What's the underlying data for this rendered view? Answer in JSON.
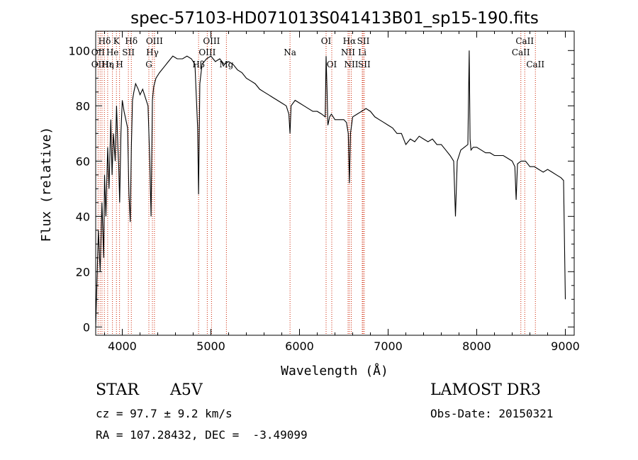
{
  "chart_data": {
    "type": "line",
    "title": "spec-57103-HD071013S041413B01_sp15-190.fits",
    "xlabel": "Wavelength (Å)",
    "ylabel": "Flux (relative)",
    "xlim": [
      3700,
      9100
    ],
    "ylim": [
      -3,
      107
    ],
    "x_ticks": [
      4000,
      5000,
      6000,
      7000,
      8000,
      9000
    ],
    "y_ticks": [
      0,
      20,
      40,
      60,
      80,
      100
    ],
    "grid": false,
    "series": [
      {
        "name": "spectrum",
        "x": [
          3700,
          3730,
          3750,
          3770,
          3790,
          3800,
          3815,
          3835,
          3850,
          3870,
          3885,
          3900,
          3920,
          3935,
          3950,
          3960,
          3970,
          3985,
          4000,
          4020,
          4040,
          4060,
          4075,
          4090,
          4102,
          4115,
          4130,
          4150,
          4180,
          4200,
          4230,
          4260,
          4290,
          4310,
          4325,
          4340,
          4355,
          4380,
          4420,
          4470,
          4520,
          4570,
          4620,
          4680,
          4730,
          4780,
          4820,
          4850,
          4861,
          4875,
          4900,
          4950,
          5000,
          5050,
          5100,
          5150,
          5200,
          5250,
          5300,
          5350,
          5400,
          5450,
          5500,
          5550,
          5600,
          5650,
          5700,
          5750,
          5800,
          5850,
          5880,
          5893,
          5905,
          5950,
          6000,
          6050,
          6100,
          6150,
          6200,
          6250,
          6290,
          6300,
          6310,
          6320,
          6340,
          6360,
          6380,
          6400,
          6450,
          6500,
          6530,
          6550,
          6563,
          6575,
          6600,
          6650,
          6700,
          6750,
          6800,
          6850,
          6900,
          6950,
          7000,
          7050,
          7100,
          7150,
          7200,
          7250,
          7300,
          7350,
          7400,
          7450,
          7500,
          7550,
          7600,
          7650,
          7700,
          7740,
          7760,
          7780,
          7820,
          7860,
          7900,
          7915,
          7925,
          7935,
          7960,
          8000,
          8050,
          8100,
          8150,
          8200,
          8250,
          8300,
          8350,
          8400,
          8430,
          8445,
          8460,
          8500,
          8550,
          8600,
          8650,
          8700,
          8750,
          8800,
          8850,
          8900,
          8950,
          8980,
          9000
        ],
        "y": [
          0,
          35,
          20,
          45,
          25,
          55,
          40,
          65,
          50,
          75,
          55,
          70,
          60,
          80,
          65,
          58,
          45,
          70,
          82,
          78,
          75,
          72,
          48,
          38,
          65,
          82,
          85,
          88,
          86,
          84,
          86,
          83,
          80,
          60,
          40,
          82,
          87,
          90,
          92,
          94,
          96,
          98,
          97,
          97,
          98,
          97,
          95,
          72,
          48,
          88,
          95,
          97,
          98,
          96,
          97,
          95,
          96,
          95,
          93,
          92,
          90,
          89,
          88,
          86,
          85,
          84,
          83,
          82,
          81,
          80,
          77,
          70,
          80,
          82,
          81,
          80,
          79,
          78,
          78,
          77,
          76,
          98,
          86,
          73,
          76,
          77,
          76,
          75,
          75,
          75,
          74,
          70,
          52,
          70,
          76,
          77,
          78,
          79,
          78,
          76,
          75,
          74,
          73,
          72,
          70,
          70,
          66,
          68,
          67,
          69,
          68,
          67,
          68,
          66,
          66,
          64,
          62,
          60,
          40,
          60,
          64,
          65,
          66,
          100,
          68,
          64,
          65,
          65,
          64,
          63,
          63,
          62,
          62,
          62,
          61,
          60,
          58,
          46,
          59,
          60,
          60,
          58,
          58,
          57,
          56,
          57,
          56,
          55,
          54,
          53,
          10
        ]
      }
    ],
    "line_labels": [
      {
        "label": "Hδ",
        "wl": 3800,
        "row": 1
      },
      {
        "label": "K",
        "wl": 3934,
        "row": 1
      },
      {
        "label": "Hδ",
        "wl": 4102,
        "row": 1
      },
      {
        "label": "OIII",
        "wl": 4363,
        "row": 1
      },
      {
        "label": "OIII",
        "wl": 5007,
        "row": 1
      },
      {
        "label": "OI",
        "wl": 6300,
        "row": 1
      },
      {
        "label": "Hα",
        "wl": 6563,
        "row": 1
      },
      {
        "label": "SII",
        "wl": 6720,
        "row": 1
      },
      {
        "label": "CaII",
        "wl": 8542,
        "row": 1
      },
      {
        "label": "OII",
        "wl": 3727,
        "row": 2
      },
      {
        "label": "He",
        "wl": 3889,
        "row": 2
      },
      {
        "label": "SII",
        "wl": 4069,
        "row": 2
      },
      {
        "label": "Hγ",
        "wl": 4340,
        "row": 2
      },
      {
        "label": "OIII",
        "wl": 4959,
        "row": 2
      },
      {
        "label": "Na",
        "wl": 5893,
        "row": 2
      },
      {
        "label": "NII",
        "wl": 6548,
        "row": 2
      },
      {
        "label": "Li",
        "wl": 6708,
        "row": 2
      },
      {
        "label": "CaII",
        "wl": 8498,
        "row": 2
      },
      {
        "label": "OII",
        "wl": 3727,
        "row": 3
      },
      {
        "label": "Hε",
        "wl": 3835,
        "row": 3
      },
      {
        "label": "Hη",
        "wl": 3835,
        "row": 3
      },
      {
        "label": "H",
        "wl": 3969,
        "row": 3
      },
      {
        "label": "G",
        "wl": 4300,
        "row": 3
      },
      {
        "label": "Hβ",
        "wl": 4861,
        "row": 3
      },
      {
        "label": "Mg",
        "wl": 5175,
        "row": 3
      },
      {
        "label": "OI",
        "wl": 6364,
        "row": 3
      },
      {
        "label": "NII",
        "wl": 6584,
        "row": 3
      },
      {
        "label": "SII",
        "wl": 6731,
        "row": 3
      },
      {
        "label": "CaII",
        "wl": 8662,
        "row": 3
      }
    ],
    "marker_lines": [
      3727,
      3750,
      3771,
      3798,
      3835,
      3889,
      3934,
      3969,
      4069,
      4102,
      4300,
      4340,
      4363,
      4861,
      4959,
      5007,
      5175,
      5893,
      6300,
      6364,
      6548,
      6563,
      6584,
      6708,
      6717,
      6731,
      8498,
      8542,
      8662
    ],
    "line_color": "#000000",
    "marker_color": "#cc2200"
  },
  "info": {
    "object_type": "STAR",
    "subclass": "A5V",
    "survey": "LAMOST DR3",
    "cz": "cz = 97.7 ± 9.2 km/s",
    "obs_date": "Obs-Date: 20150321",
    "coords": "RA = 107.28432, DEC =  -3.49099"
  }
}
